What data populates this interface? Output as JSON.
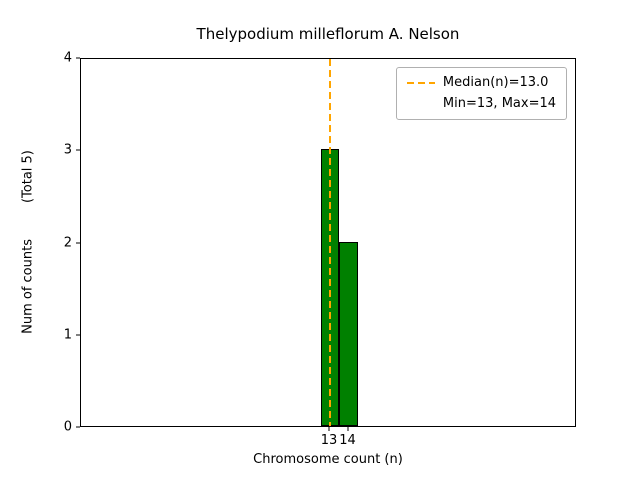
{
  "chart_data": {
    "type": "bar",
    "title": "Thelypodium milleflorum A. Nelson",
    "xlabel": "Chromosome count (n)",
    "ylabel": "Num of counts",
    "ylabel_note": "(Total 5)",
    "total_counts": 5,
    "categories": [
      13,
      14
    ],
    "values": [
      3,
      2
    ],
    "ylim": [
      0,
      4
    ],
    "yticks": [
      0,
      1,
      2,
      3,
      4
    ],
    "median_n": 13.0,
    "min_n": 13,
    "max_n": 14,
    "legend": {
      "position": "upper right",
      "entries": [
        {
          "label": "Median(n)=13.0"
        },
        {
          "label": "Min=13, Max=14"
        }
      ]
    },
    "bar_color": "#008000",
    "bar_edge_color": "#000000",
    "median_line_color": "#ffa500",
    "grid": false
  }
}
